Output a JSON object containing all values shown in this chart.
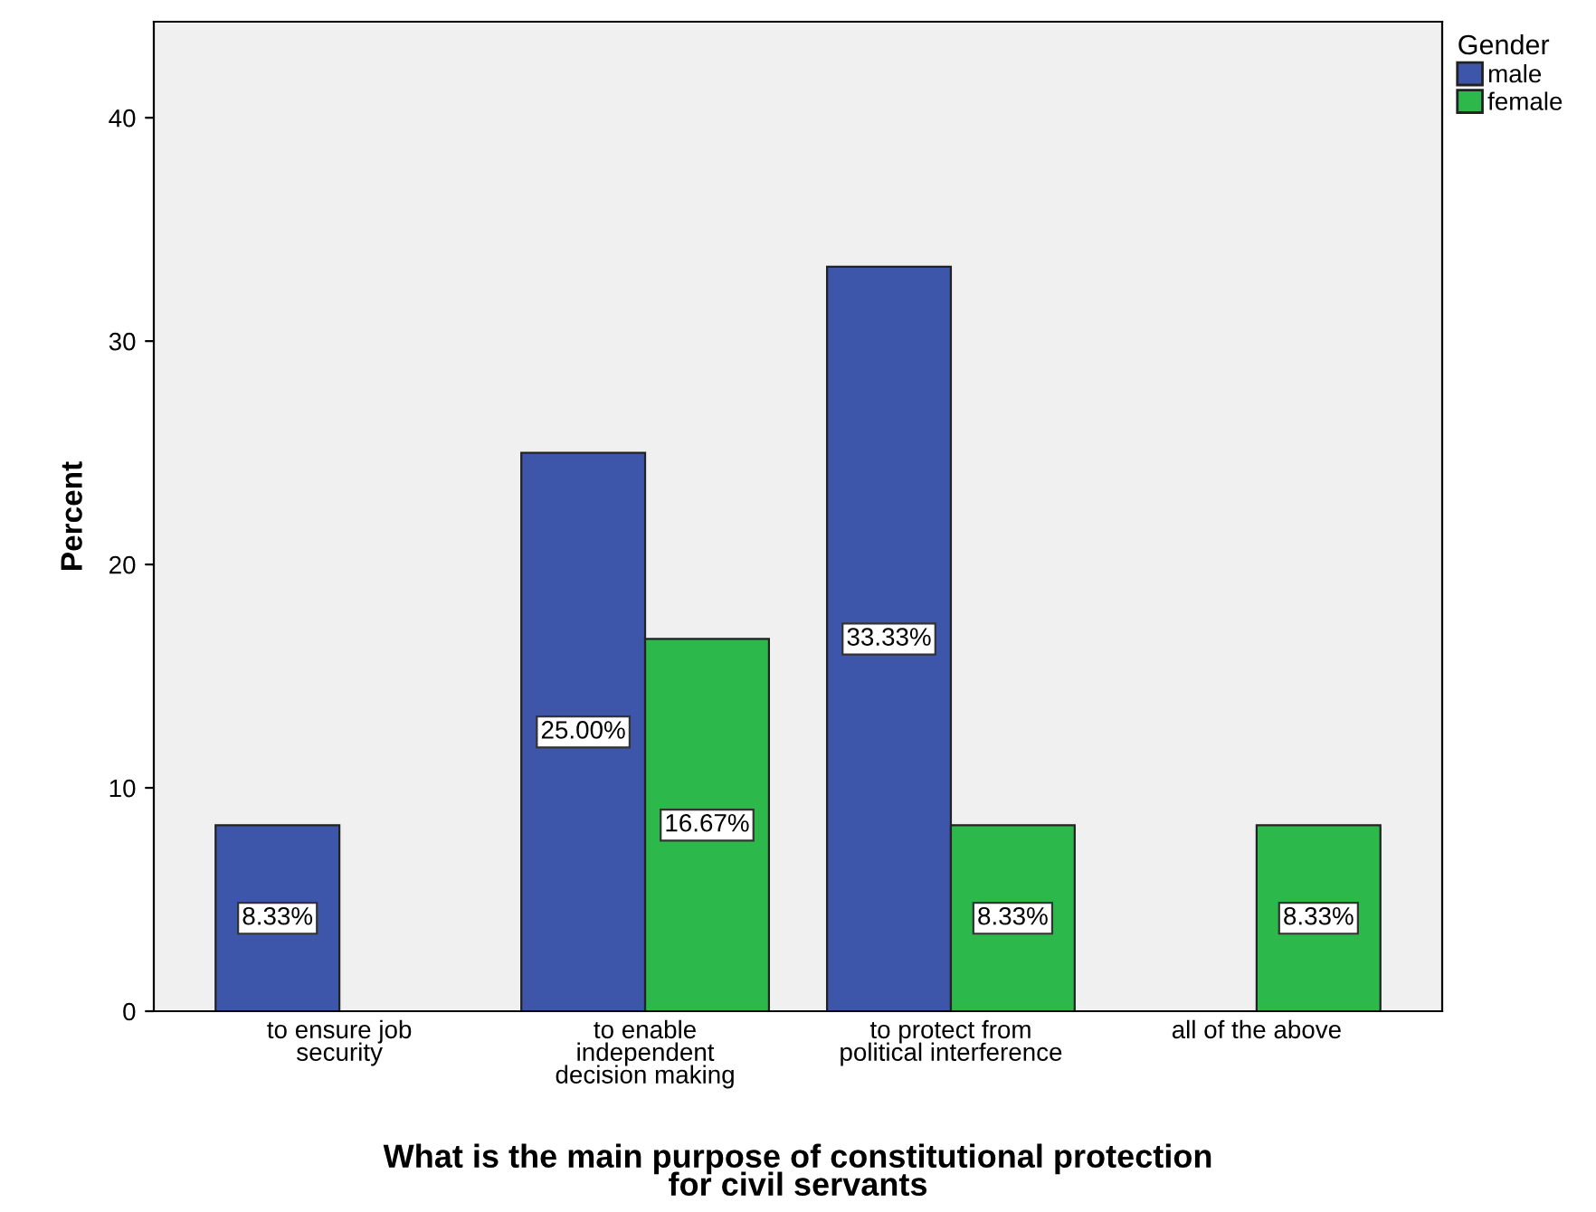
{
  "chart_data": {
    "type": "bar",
    "xlabel": "What is the main purpose of constitutional protection\nfor civil servants",
    "ylabel": "Percent",
    "legend_title": "Gender",
    "categories": [
      "to ensure job\nsecurity",
      "to enable\nindependent\ndecision making",
      "to protect from\npolitical interference",
      "all of the above"
    ],
    "series": [
      {
        "name": "male",
        "color": "#3e56aa",
        "values": [
          8.33,
          25.0,
          33.33,
          null
        ],
        "value_labels": [
          "8.33%",
          "25.00%",
          "33.33%",
          null
        ]
      },
      {
        "name": "female",
        "color": "#2db84b",
        "values": [
          null,
          16.67,
          8.33,
          8.33
        ],
        "value_labels": [
          null,
          "16.67%",
          "8.33%",
          "8.33%"
        ]
      }
    ],
    "ylim": [
      0,
      44.3
    ],
    "yticks": [
      0,
      10,
      20,
      30,
      40
    ],
    "grid": false,
    "legend": "top right"
  }
}
